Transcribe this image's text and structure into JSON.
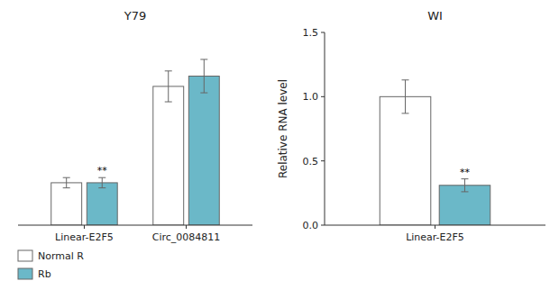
{
  "chart_data": [
    {
      "type": "bar",
      "title": "Y79",
      "categories": [
        "Linear-E2F5",
        "Circ_0084811"
      ],
      "series": [
        {
          "name": "Normal R",
          "color": "#FFFFFF",
          "values": [
            0.33,
            1.08
          ],
          "errors": [
            0.04,
            0.12
          ]
        },
        {
          "name": "Rb",
          "color": "#6BB8C8",
          "values": [
            0.33,
            1.16
          ],
          "errors": [
            0.04,
            0.13
          ],
          "annotations": [
            "**",
            null
          ]
        }
      ],
      "ylim": [
        0,
        1.5
      ],
      "tick_labels": "x",
      "grid": false,
      "legend": "bottom-left"
    },
    {
      "type": "bar",
      "title": "WI",
      "y_label": "Relative RNA level",
      "categories": [
        "Linear-E2F5"
      ],
      "series": [
        {
          "name": "Normal R",
          "color": "#FFFFFF",
          "values": [
            1.0
          ],
          "errors": [
            0.13
          ]
        },
        {
          "name": "Rb",
          "color": "#6BB8C8",
          "values": [
            0.31
          ],
          "errors": [
            0.05
          ],
          "annotations": [
            "**"
          ]
        }
      ],
      "ylim": [
        0,
        1.5
      ],
      "yticks": [
        {
          "value": 0,
          "label": "0.0"
        },
        {
          "value": 0.5,
          "label": "0.5"
        },
        {
          "value": 1,
          "label": "1.0"
        },
        {
          "value": 1.5,
          "label": "1.5"
        }
      ],
      "grid": false
    }
  ]
}
